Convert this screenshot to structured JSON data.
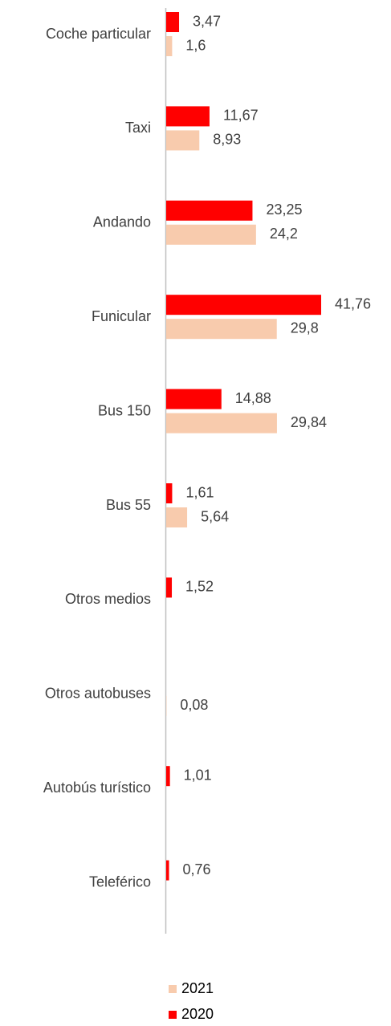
{
  "chart_data": {
    "type": "hbar",
    "categories": [
      "Coche particular",
      "Taxi",
      "Andando",
      "Funicular",
      "Bus 150",
      "Bus 55",
      "Otros medios",
      "Otros autobuses",
      "Autobús turístico",
      "Teleférico"
    ],
    "series": [
      {
        "name": "2020",
        "color": "#ff0000",
        "values": [
          3.47,
          11.67,
          23.25,
          41.76,
          14.88,
          1.61,
          1.52,
          null,
          1.01,
          0.76
        ],
        "value_labels": [
          "3,47",
          "11,67",
          "23,25",
          "41,76",
          "14,88",
          "1,61",
          "1,52",
          null,
          "1,01",
          "0,76"
        ]
      },
      {
        "name": "2021",
        "color": "#f8cbad",
        "values": [
          1.6,
          8.93,
          24.2,
          29.8,
          29.84,
          5.64,
          null,
          0.08,
          null,
          null
        ],
        "value_labels": [
          "1,6",
          "8,93",
          "24,2",
          "29,8",
          "29,84",
          "5,64",
          null,
          "0,08",
          null,
          null
        ]
      }
    ],
    "xlim": [
      0,
      45
    ],
    "legend": "bottom"
  }
}
